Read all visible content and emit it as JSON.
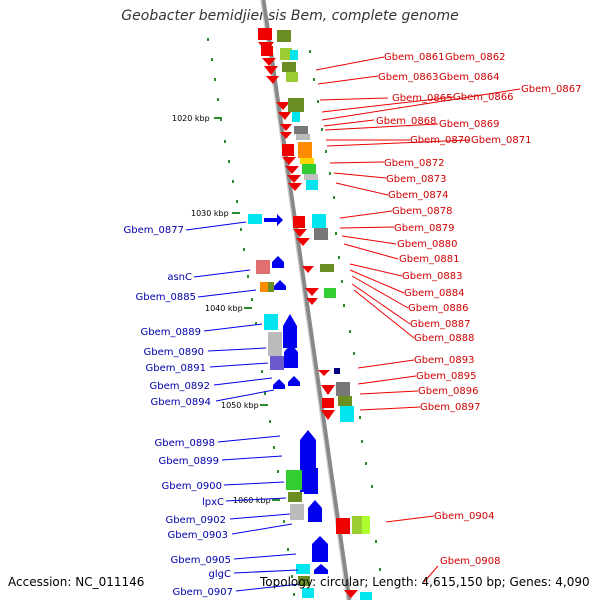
{
  "title": "Geobacter bemidjiensis Bem, complete genome",
  "accession": "Accession: NC_011146",
  "summary": "Topology: circular; Length: 4,615,150 bp; Genes: 4,090",
  "scale_labels": [
    "1020 kbp",
    "1030 kbp",
    "1040 kbp",
    "1050 kbp",
    "1060 kbp"
  ],
  "right_labels": [
    "Gbem_0861",
    "Gbem_0862",
    "Gbem_0863",
    "Gbem_0864",
    "Gbem_0865",
    "Gbem_0866",
    "Gbem_0867",
    "Gbem_0868",
    "Gbem_0869",
    "Gbem_0870",
    "Gbem_0871",
    "Gbem_0872",
    "Gbem_0873",
    "Gbem_0874",
    "Gbem_0878",
    "Gbem_0879",
    "Gbem_0880",
    "Gbem_0881",
    "Gbem_0883",
    "Gbem_0884",
    "Gbem_0886",
    "Gbem_0887",
    "Gbem_0888",
    "Gbem_0893",
    "Gbem_0895",
    "Gbem_0896",
    "Gbem_0897",
    "Gbem_0904",
    "Gbem_0908"
  ],
  "left_labels": [
    "Gbem_0877",
    "asnC",
    "Gbem_0885",
    "Gbem_0889",
    "Gbem_0890",
    "Gbem_0891",
    "Gbem_0892",
    "Gbem_0894",
    "Gbem_0898",
    "Gbem_0899",
    "Gbem_0900",
    "lpxC",
    "Gbem_0902",
    "Gbem_0903",
    "Gbem_0905",
    "glgC",
    "Gbem_0907"
  ]
}
